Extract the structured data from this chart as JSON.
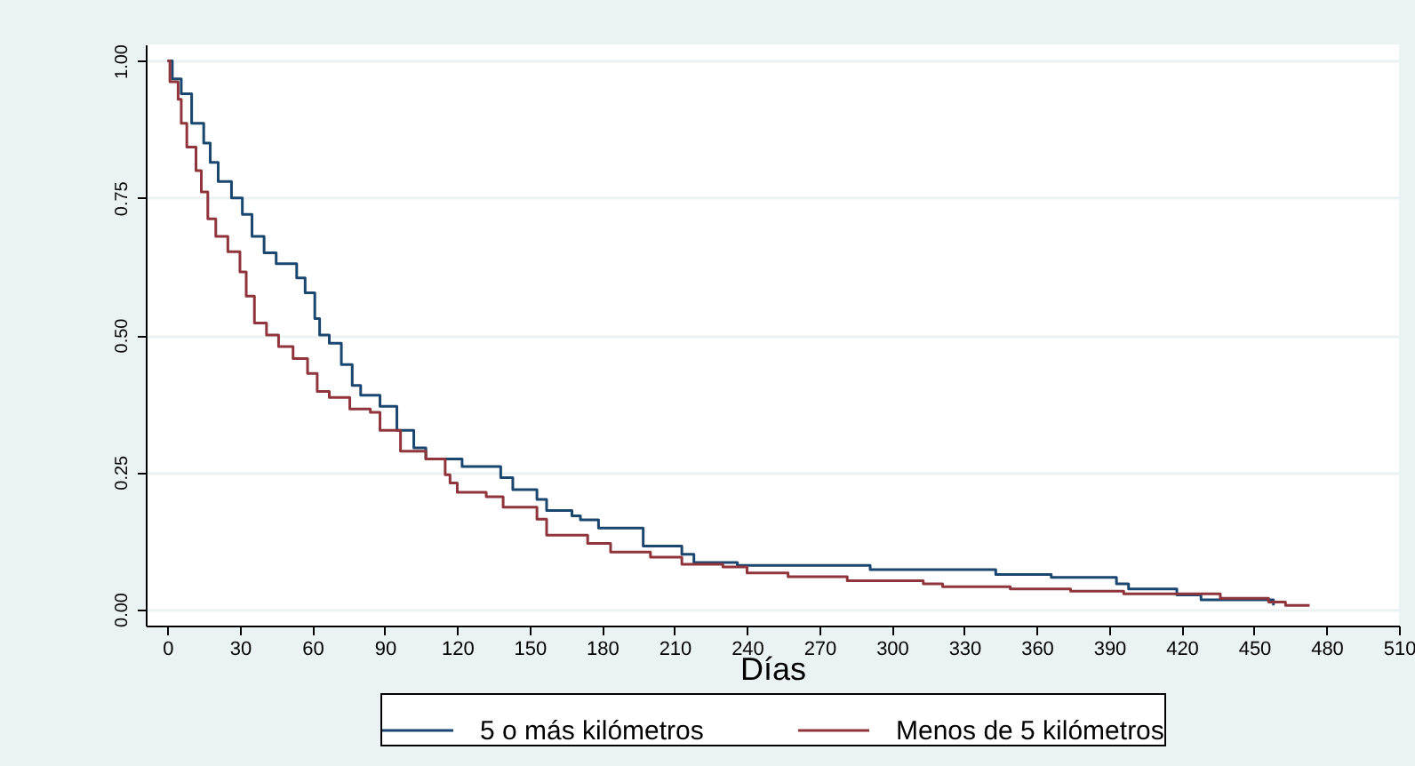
{
  "chart_data": {
    "type": "step",
    "xlabel": "Días",
    "x": [
      0,
      2,
      5.7,
      10,
      15,
      17.7,
      21,
      26.5,
      31,
      35,
      40,
      45,
      53.5,
      57,
      61,
      63,
      67,
      72,
      76.5,
      80,
      88,
      95,
      102,
      107,
      122,
      138,
      143,
      153,
      157,
      167.5,
      171,
      178.5,
      197,
      213,
      218,
      236,
      291,
      343,
      366,
      393,
      398,
      418,
      428,
      458
    ],
    "series": [
      {
        "name": "5 o más kilómetros",
        "color": "#1a476f",
        "values": [
          1,
          0.967,
          0.94,
          0.886,
          0.85,
          0.815,
          0.78,
          0.75,
          0.72,
          0.68,
          0.65,
          0.63,
          0.604,
          0.577,
          0.53,
          0.5,
          0.485,
          0.446,
          0.408,
          0.39,
          0.37,
          0.326,
          0.294,
          0.274,
          0.26,
          0.24,
          0.218,
          0.2,
          0.18,
          0.17,
          0.163,
          0.148,
          0.115,
          0.1,
          0.085,
          0.08,
          0.072,
          0.063,
          0.058,
          0.046,
          0.037,
          0.026,
          0.017,
          0.007
        ]
      },
      {
        "name": "Menos de 5 kilómetros",
        "color": "#90353b",
        "x": [
          0,
          1,
          4.4,
          5.7,
          8,
          11.8,
          14,
          16.7,
          20,
          25,
          30,
          32.6,
          36,
          41,
          46,
          52,
          58,
          62,
          67,
          75.5,
          84,
          88,
          96.5,
          107,
          115,
          117,
          120,
          132,
          139,
          153,
          157,
          174,
          183.5,
          200,
          213,
          230,
          240,
          257,
          281.5,
          313,
          321,
          349,
          374,
          396,
          436,
          456,
          463,
          473
        ],
        "values": [
          1,
          0.962,
          0.93,
          0.886,
          0.843,
          0.8,
          0.761,
          0.712,
          0.68,
          0.652,
          0.615,
          0.571,
          0.522,
          0.5,
          0.479,
          0.457,
          0.43,
          0.397,
          0.386,
          0.365,
          0.359,
          0.326,
          0.288,
          0.274,
          0.245,
          0.23,
          0.213,
          0.205,
          0.186,
          0.164,
          0.135,
          0.12,
          0.104,
          0.095,
          0.082,
          0.077,
          0.066,
          0.059,
          0.052,
          0.046,
          0.041,
          0.037,
          0.033,
          0.028,
          0.02,
          0.013,
          0.007,
          0.007
        ]
      }
    ],
    "xlim": [
      -9,
      510
    ],
    "xticks": [
      0,
      30,
      60,
      90,
      120,
      150,
      180,
      210,
      240,
      270,
      300,
      330,
      360,
      390,
      420,
      450,
      480,
      510
    ],
    "ylim": [
      -0.03,
      1.03
    ],
    "yticks": [
      {
        "value": 0,
        "label": "0.00"
      },
      {
        "value": 0.25,
        "label": "0.25"
      },
      {
        "value": 0.5,
        "label": "0.50"
      },
      {
        "value": 0.75,
        "label": "0.75"
      },
      {
        "value": 1,
        "label": "1.00"
      }
    ],
    "grid": "y",
    "legend": "bottom",
    "line_style": "solid",
    "marker": "none"
  }
}
